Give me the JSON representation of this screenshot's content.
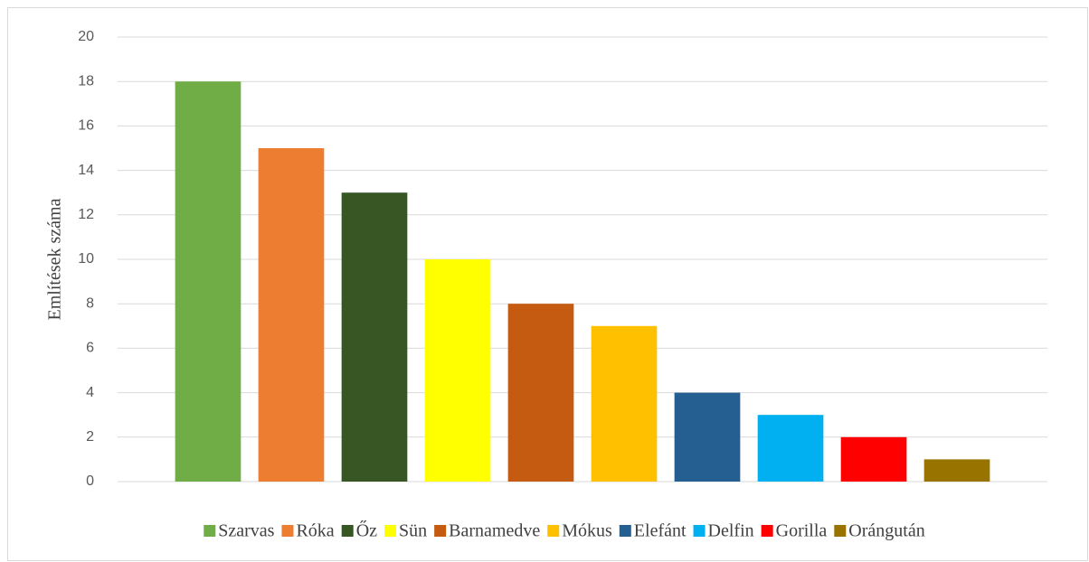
{
  "chart_data": {
    "type": "bar",
    "y_label": "Említések száma",
    "categories": [
      null
    ],
    "series": [
      {
        "name": "Szarvas",
        "color": "#70ad47",
        "values": [
          18
        ]
      },
      {
        "name": "Róka",
        "color": "#ed7d31",
        "values": [
          15
        ]
      },
      {
        "name": "Őz",
        "color": "#375623",
        "values": [
          13
        ]
      },
      {
        "name": "Sün",
        "color": "#ffff00",
        "values": [
          10
        ]
      },
      {
        "name": "Barnamedve",
        "color": "#c55a11",
        "values": [
          8
        ]
      },
      {
        "name": "Mókus",
        "color": "#ffc000",
        "values": [
          7
        ]
      },
      {
        "name": "Elefánt",
        "color": "#255e91",
        "values": [
          4
        ]
      },
      {
        "name": "Delfin",
        "color": "#00b0f0",
        "values": [
          3
        ]
      },
      {
        "name": "Gorilla",
        "color": "#ff0000",
        "values": [
          2
        ]
      },
      {
        "name": "Orángután",
        "color": "#997300",
        "values": [
          1
        ]
      }
    ],
    "ylim": [
      0,
      20
    ],
    "yticks": [
      0,
      2,
      4,
      6,
      8,
      10,
      12,
      14,
      16,
      18,
      20
    ],
    "grid": true,
    "legend": "bottom"
  }
}
